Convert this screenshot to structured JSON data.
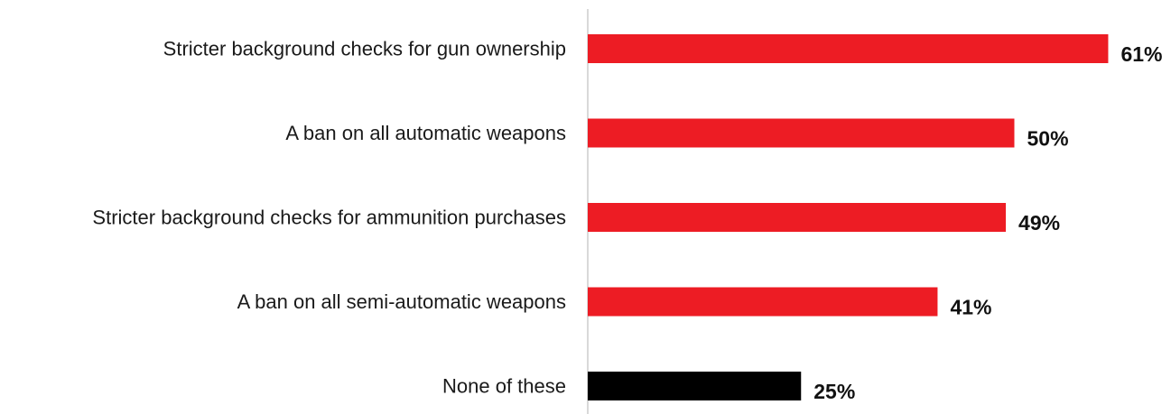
{
  "chart_data": {
    "type": "bar",
    "orientation": "horizontal",
    "title": "",
    "xlabel": "",
    "ylabel": "",
    "value_suffix": "%",
    "xlim": [
      0,
      100
    ],
    "grid": false,
    "legend": "none",
    "categories": [
      "Stricter background checks for gun ownership",
      "A ban on all automatic weapons",
      "Stricter background checks for ammunition purchases",
      "A ban on all semi-automatic weapons",
      "None of these"
    ],
    "values": [
      61,
      50,
      49,
      41,
      25
    ],
    "value_labels": [
      "61%",
      "50%",
      "49%",
      "41%",
      "25%"
    ],
    "bar_colors": [
      "#ed1c24",
      "#ed1c24",
      "#ed1c24",
      "#ed1c24",
      "#000000"
    ],
    "axis_color": "#d9d9d9"
  }
}
